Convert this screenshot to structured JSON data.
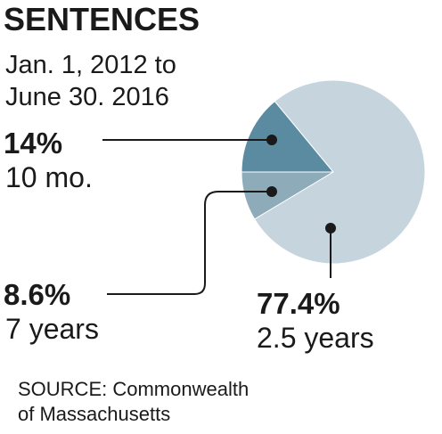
{
  "chart_data": {
    "type": "pie",
    "title": "SENTENCES",
    "subtitle": [
      "Jan. 1, 2012 to",
      "June 30. 2016"
    ],
    "categories": [
      "10 mo.",
      "7 years",
      "2.5 years"
    ],
    "values": [
      14,
      8.6,
      77.4
    ],
    "value_labels": [
      "14%",
      "8.6%",
      "77.4%"
    ],
    "colors": [
      "#5b8ba0",
      "#8eabba",
      "#c6d4de"
    ],
    "source": [
      "SOURCE: Commonwealth",
      "of Massachusetts"
    ]
  }
}
